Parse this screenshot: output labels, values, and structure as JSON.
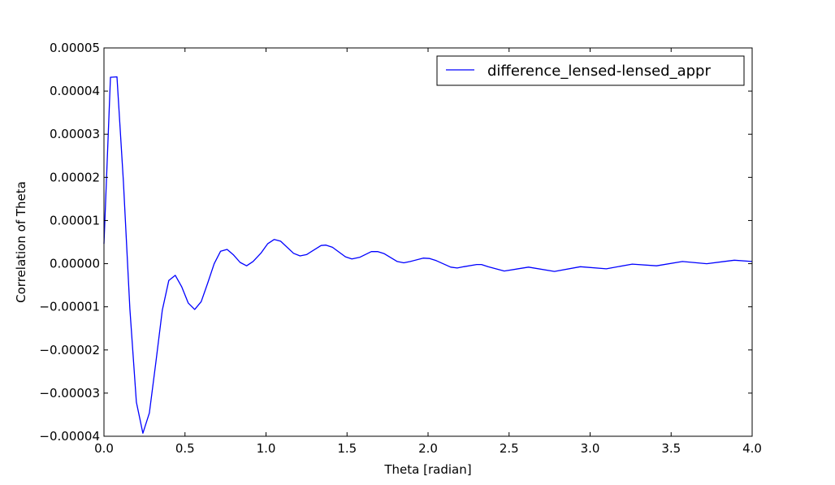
{
  "chart_data": {
    "type": "line",
    "title": "",
    "xlabel": "Theta [radian]",
    "ylabel": "Correlation of Theta",
    "xlim": [
      0.0,
      4.0
    ],
    "ylim": [
      -4e-05,
      5e-05
    ],
    "xticks": [
      "0.0",
      "0.5",
      "1.0",
      "1.5",
      "2.0",
      "2.5",
      "3.0",
      "3.5",
      "4.0"
    ],
    "yticks": [
      "−0.00004",
      "−0.00003",
      "−0.00002",
      "−0.00001",
      "0.00000",
      "0.00001",
      "0.00002",
      "0.00003",
      "0.00004",
      "0.00005"
    ],
    "grid": false,
    "legend_position": "top-right",
    "series": [
      {
        "name": "difference_lensed-lensed_appr",
        "color": "#0000ff",
        "x": [
          0.0,
          0.04,
          0.08,
          0.12,
          0.16,
          0.2,
          0.24,
          0.28,
          0.32,
          0.36,
          0.4,
          0.44,
          0.48,
          0.52,
          0.56,
          0.6,
          0.64,
          0.68,
          0.72,
          0.76,
          0.8,
          0.84,
          0.88,
          0.92,
          0.97,
          1.01,
          1.05,
          1.09,
          1.17,
          1.21,
          1.25,
          1.34,
          1.37,
          1.41,
          1.49,
          1.53,
          1.58,
          1.65,
          1.69,
          1.73,
          1.81,
          1.85,
          1.89,
          1.97,
          2.01,
          2.05,
          2.14,
          2.18,
          2.22,
          2.3,
          2.33,
          2.37,
          2.47,
          2.62,
          2.78,
          2.94,
          3.1,
          3.26,
          3.41,
          3.57,
          3.72,
          3.89,
          4.0
        ],
        "y": [
          4.6e-06,
          4.32e-05,
          4.33e-05,
          1.91e-05,
          -1.05e-05,
          -3.21e-05,
          -3.93e-05,
          -3.46e-05,
          -2.3e-05,
          -1.08e-05,
          -3.9e-06,
          -2.7e-06,
          -5.4e-06,
          -9.1e-06,
          -1.06e-05,
          -8.8e-06,
          -4.5e-06,
          0.0,
          2.9e-06,
          3.3e-06,
          2e-06,
          3e-07,
          -5e-07,
          5e-07,
          2.5e-06,
          4.6e-06,
          5.6e-06,
          5.2e-06,
          2.4e-06,
          1.8e-06,
          2.1e-06,
          4.2e-06,
          4.3e-06,
          3.8e-06,
          1.6e-06,
          1.1e-06,
          1.5e-06,
          2.8e-06,
          2.8e-06,
          2.3e-06,
          5e-07,
          2e-07,
          5e-07,
          1.3e-06,
          1.2e-06,
          7e-07,
          -8e-07,
          -1e-06,
          -7e-07,
          -2e-07,
          -2e-07,
          -7e-07,
          -1.7e-06,
          -8e-07,
          -1.8e-06,
          -7e-07,
          -1.2e-06,
          -1e-07,
          -5e-07,
          5e-07,
          0.0,
          8e-07,
          5e-07
        ]
      }
    ]
  }
}
